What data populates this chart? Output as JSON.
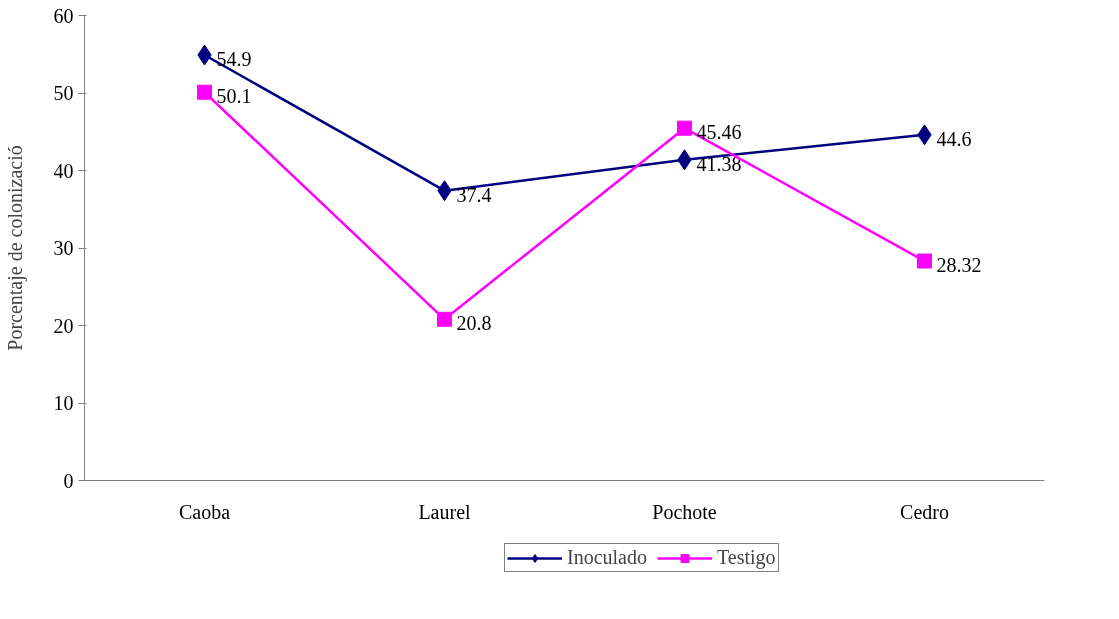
{
  "chart_data": {
    "type": "line",
    "ylabel": "Porcentaje de colonizació",
    "categories": [
      "Caoba",
      "Laurel",
      "Pochote",
      "Cedro"
    ],
    "series": [
      {
        "name": "Inoculado",
        "color": "#000080",
        "marker": "diamond",
        "values": [
          54.9,
          37.4,
          41.38,
          44.6
        ]
      },
      {
        "name": "Testigo",
        "color": "#ff00ff",
        "marker": "square",
        "values": [
          50.1,
          20.8,
          45.46,
          28.32
        ]
      }
    ],
    "ylim": [
      0,
      60
    ],
    "yticks": [
      0,
      10,
      20,
      30,
      40,
      50,
      60
    ],
    "data_labels": true,
    "legend": "bottom",
    "grid": false
  }
}
